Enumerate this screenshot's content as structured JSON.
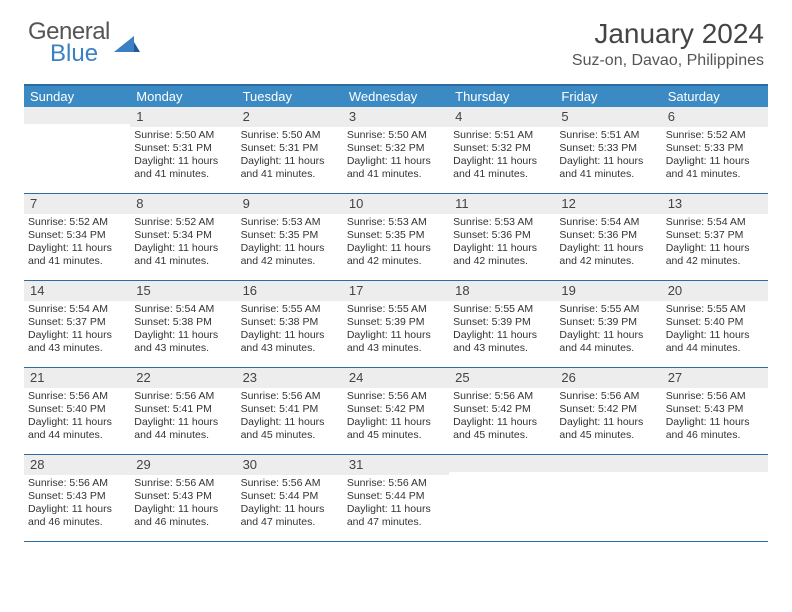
{
  "logo": {
    "text1": "General",
    "text2": "Blue"
  },
  "title": "January 2024",
  "location": "Suz-on, Davao, Philippines",
  "weekdays": [
    "Sunday",
    "Monday",
    "Tuesday",
    "Wednesday",
    "Thursday",
    "Friday",
    "Saturday"
  ],
  "colors": {
    "header_blue": "#3b8ac4",
    "border_blue": "#2d6ca2",
    "gray_bg": "#ededed"
  },
  "weeks": [
    [
      {
        "num": "",
        "sunrise": "",
        "sunset": "",
        "daylight": ""
      },
      {
        "num": "1",
        "sunrise": "Sunrise: 5:50 AM",
        "sunset": "Sunset: 5:31 PM",
        "daylight": "Daylight: 11 hours and 41 minutes."
      },
      {
        "num": "2",
        "sunrise": "Sunrise: 5:50 AM",
        "sunset": "Sunset: 5:31 PM",
        "daylight": "Daylight: 11 hours and 41 minutes."
      },
      {
        "num": "3",
        "sunrise": "Sunrise: 5:50 AM",
        "sunset": "Sunset: 5:32 PM",
        "daylight": "Daylight: 11 hours and 41 minutes."
      },
      {
        "num": "4",
        "sunrise": "Sunrise: 5:51 AM",
        "sunset": "Sunset: 5:32 PM",
        "daylight": "Daylight: 11 hours and 41 minutes."
      },
      {
        "num": "5",
        "sunrise": "Sunrise: 5:51 AM",
        "sunset": "Sunset: 5:33 PM",
        "daylight": "Daylight: 11 hours and 41 minutes."
      },
      {
        "num": "6",
        "sunrise": "Sunrise: 5:52 AM",
        "sunset": "Sunset: 5:33 PM",
        "daylight": "Daylight: 11 hours and 41 minutes."
      }
    ],
    [
      {
        "num": "7",
        "sunrise": "Sunrise: 5:52 AM",
        "sunset": "Sunset: 5:34 PM",
        "daylight": "Daylight: 11 hours and 41 minutes."
      },
      {
        "num": "8",
        "sunrise": "Sunrise: 5:52 AM",
        "sunset": "Sunset: 5:34 PM",
        "daylight": "Daylight: 11 hours and 41 minutes."
      },
      {
        "num": "9",
        "sunrise": "Sunrise: 5:53 AM",
        "sunset": "Sunset: 5:35 PM",
        "daylight": "Daylight: 11 hours and 42 minutes."
      },
      {
        "num": "10",
        "sunrise": "Sunrise: 5:53 AM",
        "sunset": "Sunset: 5:35 PM",
        "daylight": "Daylight: 11 hours and 42 minutes."
      },
      {
        "num": "11",
        "sunrise": "Sunrise: 5:53 AM",
        "sunset": "Sunset: 5:36 PM",
        "daylight": "Daylight: 11 hours and 42 minutes."
      },
      {
        "num": "12",
        "sunrise": "Sunrise: 5:54 AM",
        "sunset": "Sunset: 5:36 PM",
        "daylight": "Daylight: 11 hours and 42 minutes."
      },
      {
        "num": "13",
        "sunrise": "Sunrise: 5:54 AM",
        "sunset": "Sunset: 5:37 PM",
        "daylight": "Daylight: 11 hours and 42 minutes."
      }
    ],
    [
      {
        "num": "14",
        "sunrise": "Sunrise: 5:54 AM",
        "sunset": "Sunset: 5:37 PM",
        "daylight": "Daylight: 11 hours and 43 minutes."
      },
      {
        "num": "15",
        "sunrise": "Sunrise: 5:54 AM",
        "sunset": "Sunset: 5:38 PM",
        "daylight": "Daylight: 11 hours and 43 minutes."
      },
      {
        "num": "16",
        "sunrise": "Sunrise: 5:55 AM",
        "sunset": "Sunset: 5:38 PM",
        "daylight": "Daylight: 11 hours and 43 minutes."
      },
      {
        "num": "17",
        "sunrise": "Sunrise: 5:55 AM",
        "sunset": "Sunset: 5:39 PM",
        "daylight": "Daylight: 11 hours and 43 minutes."
      },
      {
        "num": "18",
        "sunrise": "Sunrise: 5:55 AM",
        "sunset": "Sunset: 5:39 PM",
        "daylight": "Daylight: 11 hours and 43 minutes."
      },
      {
        "num": "19",
        "sunrise": "Sunrise: 5:55 AM",
        "sunset": "Sunset: 5:39 PM",
        "daylight": "Daylight: 11 hours and 44 minutes."
      },
      {
        "num": "20",
        "sunrise": "Sunrise: 5:55 AM",
        "sunset": "Sunset: 5:40 PM",
        "daylight": "Daylight: 11 hours and 44 minutes."
      }
    ],
    [
      {
        "num": "21",
        "sunrise": "Sunrise: 5:56 AM",
        "sunset": "Sunset: 5:40 PM",
        "daylight": "Daylight: 11 hours and 44 minutes."
      },
      {
        "num": "22",
        "sunrise": "Sunrise: 5:56 AM",
        "sunset": "Sunset: 5:41 PM",
        "daylight": "Daylight: 11 hours and 44 minutes."
      },
      {
        "num": "23",
        "sunrise": "Sunrise: 5:56 AM",
        "sunset": "Sunset: 5:41 PM",
        "daylight": "Daylight: 11 hours and 45 minutes."
      },
      {
        "num": "24",
        "sunrise": "Sunrise: 5:56 AM",
        "sunset": "Sunset: 5:42 PM",
        "daylight": "Daylight: 11 hours and 45 minutes."
      },
      {
        "num": "25",
        "sunrise": "Sunrise: 5:56 AM",
        "sunset": "Sunset: 5:42 PM",
        "daylight": "Daylight: 11 hours and 45 minutes."
      },
      {
        "num": "26",
        "sunrise": "Sunrise: 5:56 AM",
        "sunset": "Sunset: 5:42 PM",
        "daylight": "Daylight: 11 hours and 45 minutes."
      },
      {
        "num": "27",
        "sunrise": "Sunrise: 5:56 AM",
        "sunset": "Sunset: 5:43 PM",
        "daylight": "Daylight: 11 hours and 46 minutes."
      }
    ],
    [
      {
        "num": "28",
        "sunrise": "Sunrise: 5:56 AM",
        "sunset": "Sunset: 5:43 PM",
        "daylight": "Daylight: 11 hours and 46 minutes."
      },
      {
        "num": "29",
        "sunrise": "Sunrise: 5:56 AM",
        "sunset": "Sunset: 5:43 PM",
        "daylight": "Daylight: 11 hours and 46 minutes."
      },
      {
        "num": "30",
        "sunrise": "Sunrise: 5:56 AM",
        "sunset": "Sunset: 5:44 PM",
        "daylight": "Daylight: 11 hours and 47 minutes."
      },
      {
        "num": "31",
        "sunrise": "Sunrise: 5:56 AM",
        "sunset": "Sunset: 5:44 PM",
        "daylight": "Daylight: 11 hours and 47 minutes."
      },
      {
        "num": "",
        "sunrise": "",
        "sunset": "",
        "daylight": ""
      },
      {
        "num": "",
        "sunrise": "",
        "sunset": "",
        "daylight": ""
      },
      {
        "num": "",
        "sunrise": "",
        "sunset": "",
        "daylight": ""
      }
    ]
  ]
}
